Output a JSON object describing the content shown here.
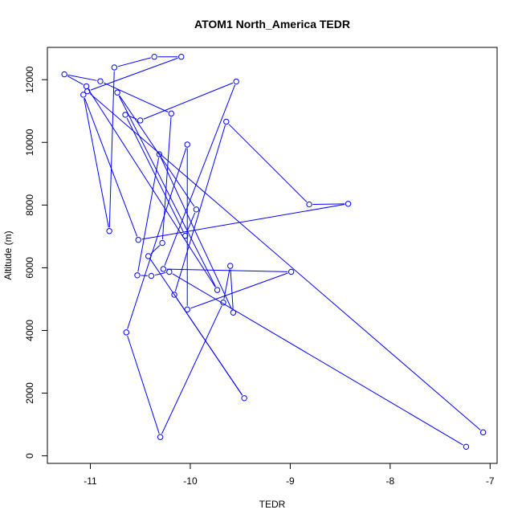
{
  "chart_data": {
    "type": "line",
    "title": "ATOM1 North_America TEDR",
    "xlabel": "TEDR",
    "ylabel": "Altitude (m)",
    "xlim": [
      -11.43,
      -6.93
    ],
    "ylim": [
      -240,
      13030
    ],
    "xticks": [
      -11,
      -10,
      -9,
      -8,
      -7
    ],
    "yticks": [
      0,
      2000,
      4000,
      6000,
      8000,
      10000,
      12000
    ],
    "x_tick_labels": [
      "-11",
      "-10",
      "-9",
      "-8",
      "-7"
    ],
    "y_tick_labels": [
      "0",
      "2000",
      "4000",
      "6000",
      "8000",
      "10000",
      "12000"
    ],
    "grid": false,
    "series": [
      {
        "color": "#0000ff",
        "marker": "open-circle",
        "points": [
          [
            -7.24,
            290
          ],
          [
            -10.21,
            5870
          ],
          [
            -10.39,
            5740
          ],
          [
            -10.53,
            5760
          ],
          [
            -10.31,
            9620
          ],
          [
            -9.57,
            4570
          ],
          [
            -9.6,
            6060
          ],
          [
            -9.67,
            4890
          ],
          [
            -10.3,
            600
          ],
          [
            -10.64,
            3940
          ],
          [
            -10.03,
            9930
          ],
          [
            -10.03,
            4670
          ],
          [
            -8.99,
            5870
          ],
          [
            -10.27,
            5960
          ],
          [
            -9.54,
            11940
          ],
          [
            -10.5,
            10700
          ],
          [
            -10.65,
            10880
          ],
          [
            -10.05,
            7020
          ],
          [
            -9.94,
            7860
          ],
          [
            -10.73,
            11590
          ],
          [
            -9.73,
            5290
          ],
          [
            -11.04,
            11790
          ],
          [
            -11.26,
            12170
          ],
          [
            -10.9,
            11950
          ],
          [
            -10.19,
            10920
          ],
          [
            -10.28,
            6790
          ],
          [
            -10.42,
            6370
          ],
          [
            -9.46,
            1840
          ],
          [
            -10.16,
            5140
          ],
          [
            -9.64,
            10660
          ],
          [
            -8.81,
            8020
          ],
          [
            -8.42,
            8040
          ],
          [
            -10.52,
            6890
          ],
          [
            -11.07,
            11520
          ],
          [
            -10.81,
            7170
          ],
          [
            -10.76,
            12390
          ],
          [
            -10.36,
            12730
          ],
          [
            -10.09,
            12730
          ],
          [
            -11.03,
            11630
          ],
          [
            -7.07,
            750
          ]
        ]
      }
    ]
  }
}
